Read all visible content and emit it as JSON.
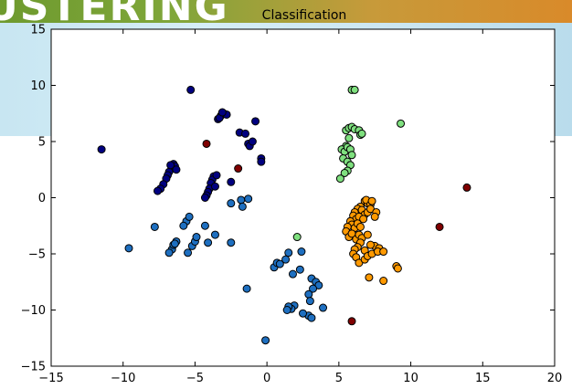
{
  "banner": {
    "text": "USTERING"
  },
  "chart_data": {
    "type": "scatter",
    "title": "Classification",
    "xlabel": "",
    "ylabel": "",
    "xlim": [
      -15,
      20
    ],
    "ylim": [
      -15,
      15
    ],
    "x_ticks": [
      "−15",
      "−10",
      "−5",
      "0",
      "5",
      "10",
      "15",
      "20"
    ],
    "y_ticks": [
      "15",
      "10",
      "5",
      "0",
      "−5",
      "−10",
      "−15"
    ],
    "x_tick_values": [
      -15,
      -10,
      -5,
      0,
      5,
      10,
      15,
      20
    ],
    "y_tick_values": [
      15,
      10,
      5,
      0,
      -5,
      -10,
      -15
    ],
    "grid": false,
    "series": [
      {
        "color": "#000080",
        "points": [
          [
            -11.5,
            4.3
          ],
          [
            -5.3,
            9.6
          ],
          [
            -3.4,
            7.0
          ],
          [
            -3.2,
            7.3
          ],
          [
            -3.0,
            7.5
          ],
          [
            -2.8,
            7.4
          ],
          [
            -3.3,
            7.1
          ],
          [
            -3.1,
            7.6
          ],
          [
            -0.8,
            6.8
          ],
          [
            -1.9,
            5.8
          ],
          [
            -1.5,
            5.7
          ],
          [
            -1.3,
            4.8
          ],
          [
            -1.2,
            4.6
          ],
          [
            -1.0,
            5.0
          ],
          [
            -0.4,
            3.5
          ],
          [
            -0.4,
            3.2
          ],
          [
            -6.5,
            3.0
          ],
          [
            -6.4,
            2.8
          ],
          [
            -6.6,
            2.6
          ],
          [
            -6.8,
            2.3
          ],
          [
            -6.9,
            2.0
          ],
          [
            -7.0,
            1.7
          ],
          [
            -7.2,
            1.2
          ],
          [
            -7.4,
            0.8
          ],
          [
            -7.6,
            0.6
          ],
          [
            -6.3,
            2.5
          ],
          [
            -6.7,
            2.9
          ],
          [
            -3.7,
            1.9
          ],
          [
            -3.8,
            1.6
          ],
          [
            -3.5,
            2.0
          ],
          [
            -3.9,
            1.3
          ],
          [
            -4.0,
            0.8
          ],
          [
            -4.1,
            0.5
          ],
          [
            -4.2,
            0.2
          ],
          [
            -4.3,
            0.0
          ],
          [
            -3.6,
            1.0
          ],
          [
            -2.5,
            1.4
          ]
        ]
      },
      {
        "color": "#1e6fc0",
        "points": [
          [
            -9.6,
            -4.5
          ],
          [
            -7.8,
            -2.6
          ],
          [
            -6.6,
            -4.6
          ],
          [
            -6.8,
            -4.9
          ],
          [
            -6.5,
            -4.2
          ],
          [
            -6.3,
            -3.9
          ],
          [
            -6.4,
            -4.1
          ],
          [
            -5.6,
            -2.1
          ],
          [
            -5.4,
            -1.7
          ],
          [
            -5.8,
            -2.5
          ],
          [
            -5.2,
            -4.3
          ],
          [
            -5.0,
            -3.9
          ],
          [
            -4.9,
            -3.5
          ],
          [
            -5.5,
            -4.9
          ],
          [
            -4.3,
            -2.5
          ],
          [
            -4.1,
            -4.0
          ],
          [
            -3.6,
            -3.3
          ],
          [
            -2.5,
            -4.0
          ],
          [
            -2.5,
            -0.5
          ],
          [
            -1.8,
            -0.2
          ],
          [
            -1.7,
            -0.8
          ],
          [
            -1.3,
            -0.1
          ],
          [
            -1.4,
            -8.1
          ],
          [
            0.5,
            -6.2
          ],
          [
            0.7,
            -5.8
          ],
          [
            0.9,
            -5.9
          ],
          [
            1.3,
            -5.5
          ],
          [
            1.5,
            -4.9
          ],
          [
            2.4,
            -4.8
          ],
          [
            2.3,
            -6.4
          ],
          [
            1.8,
            -6.8
          ],
          [
            3.1,
            -7.2
          ],
          [
            3.4,
            -7.5
          ],
          [
            3.6,
            -7.8
          ],
          [
            3.2,
            -8.1
          ],
          [
            2.9,
            -8.6
          ],
          [
            3.0,
            -9.2
          ],
          [
            3.9,
            -9.8
          ],
          [
            2.9,
            -10.5
          ],
          [
            3.1,
            -10.7
          ],
          [
            2.5,
            -10.3
          ],
          [
            1.9,
            -9.6
          ],
          [
            1.7,
            -9.9
          ],
          [
            1.5,
            -9.7
          ],
          [
            1.4,
            -10.0
          ],
          [
            -0.1,
            -12.7
          ]
        ]
      },
      {
        "color": "#7fe07f",
        "points": [
          [
            5.9,
            9.6
          ],
          [
            6.1,
            9.6
          ],
          [
            9.3,
            6.6
          ],
          [
            5.5,
            6.0
          ],
          [
            5.7,
            6.2
          ],
          [
            5.9,
            6.3
          ],
          [
            6.1,
            6.1
          ],
          [
            6.4,
            6.0
          ],
          [
            6.5,
            5.6
          ],
          [
            6.6,
            5.7
          ],
          [
            5.7,
            5.3
          ],
          [
            5.5,
            4.6
          ],
          [
            5.2,
            4.3
          ],
          [
            5.4,
            4.1
          ],
          [
            5.6,
            4.5
          ],
          [
            5.8,
            4.3
          ],
          [
            5.9,
            3.8
          ],
          [
            5.3,
            3.5
          ],
          [
            5.6,
            3.2
          ],
          [
            5.8,
            2.9
          ],
          [
            5.6,
            2.4
          ],
          [
            5.4,
            2.2
          ],
          [
            5.1,
            1.7
          ],
          [
            2.1,
            -3.5
          ]
        ]
      },
      {
        "color": "#ff9900",
        "points": [
          [
            6.8,
            -0.3
          ],
          [
            7.0,
            -0.5
          ],
          [
            6.9,
            -0.2
          ],
          [
            7.2,
            -0.6
          ],
          [
            7.3,
            -0.3
          ],
          [
            6.5,
            -0.8
          ],
          [
            6.3,
            -1.0
          ],
          [
            6.1,
            -1.3
          ],
          [
            6.6,
            -1.1
          ],
          [
            6.8,
            -1.5
          ],
          [
            7.0,
            -1.3
          ],
          [
            7.2,
            -1.0
          ],
          [
            6.0,
            -1.6
          ],
          [
            6.2,
            -1.9
          ],
          [
            6.4,
            -1.7
          ],
          [
            6.7,
            -1.9
          ],
          [
            5.8,
            -2.1
          ],
          [
            5.9,
            -2.4
          ],
          [
            6.1,
            -2.7
          ],
          [
            6.3,
            -2.3
          ],
          [
            6.5,
            -2.6
          ],
          [
            5.6,
            -2.6
          ],
          [
            5.5,
            -3.0
          ],
          [
            5.7,
            -3.5
          ],
          [
            5.9,
            -3.2
          ],
          [
            6.2,
            -3.7
          ],
          [
            6.4,
            -3.3
          ],
          [
            6.6,
            -3.6
          ],
          [
            7.6,
            -1.3
          ],
          [
            7.5,
            -1.7
          ],
          [
            7.0,
            -3.3
          ],
          [
            7.5,
            -4.3
          ],
          [
            7.8,
            -4.5
          ],
          [
            7.2,
            -4.2
          ],
          [
            6.8,
            -4.7
          ],
          [
            6.5,
            -4.0
          ],
          [
            6.3,
            -4.4
          ],
          [
            6.1,
            -4.6
          ],
          [
            6.0,
            -5.0
          ],
          [
            6.2,
            -5.3
          ],
          [
            6.4,
            -5.8
          ],
          [
            6.8,
            -5.5
          ],
          [
            7.0,
            -5.2
          ],
          [
            7.3,
            -5.0
          ],
          [
            7.7,
            -4.8
          ],
          [
            8.1,
            -4.8
          ],
          [
            7.1,
            -7.1
          ],
          [
            8.1,
            -7.4
          ],
          [
            9.0,
            -6.1
          ],
          [
            9.1,
            -6.3
          ]
        ]
      },
      {
        "color": "#800000",
        "points": [
          [
            -4.2,
            4.8
          ],
          [
            -2.0,
            2.6
          ],
          [
            12.0,
            -2.6
          ],
          [
            13.9,
            0.9
          ],
          [
            5.9,
            -11.0
          ]
        ]
      }
    ]
  }
}
